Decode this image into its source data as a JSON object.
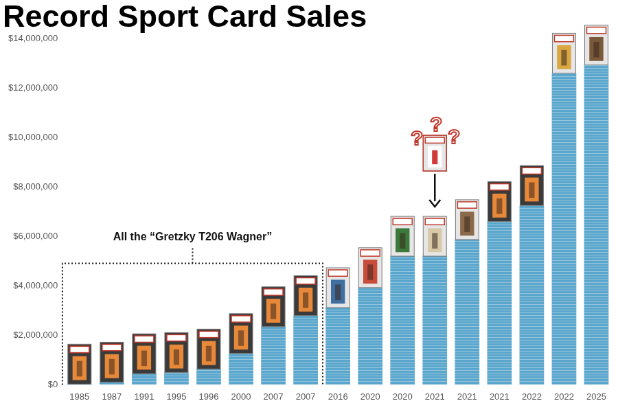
{
  "chart_data": {
    "type": "bar",
    "title": "Record Sport Card Sales",
    "categories": [
      "1985",
      "1987",
      "1991",
      "1995",
      "1996",
      "2000",
      "2007",
      "2007",
      "2016",
      "2020",
      "2020",
      "2021",
      "2021",
      "2021",
      "2022",
      "2022",
      "2025"
    ],
    "values": [
      30000,
      110000,
      451000,
      500000,
      640000,
      1265000,
      2350000,
      2800000,
      3120000,
      3930000,
      5200000,
      5200000,
      5870000,
      6600000,
      7250000,
      12600000,
      12930000
    ],
    "color": "#5aa6cc",
    "ylim": [
      0,
      14000000
    ],
    "yticks": [
      {
        "value": 0,
        "label": "$0"
      },
      {
        "value": 2000000,
        "label": "$2,000,000"
      },
      {
        "value": 4000000,
        "label": "$4,000,000"
      },
      {
        "value": 6000000,
        "label": "$6,000,000"
      },
      {
        "value": 8000000,
        "label": "$8,000,000"
      },
      {
        "value": 10000000,
        "label": "$10,000,000"
      },
      {
        "value": 12000000,
        "label": "$12,000,000"
      },
      {
        "value": 14000000,
        "label": "$14,000,000"
      }
    ],
    "grid": false,
    "annotations": [
      "All the “Gretzky T206 Wagner”",
      "???"
    ]
  }
}
